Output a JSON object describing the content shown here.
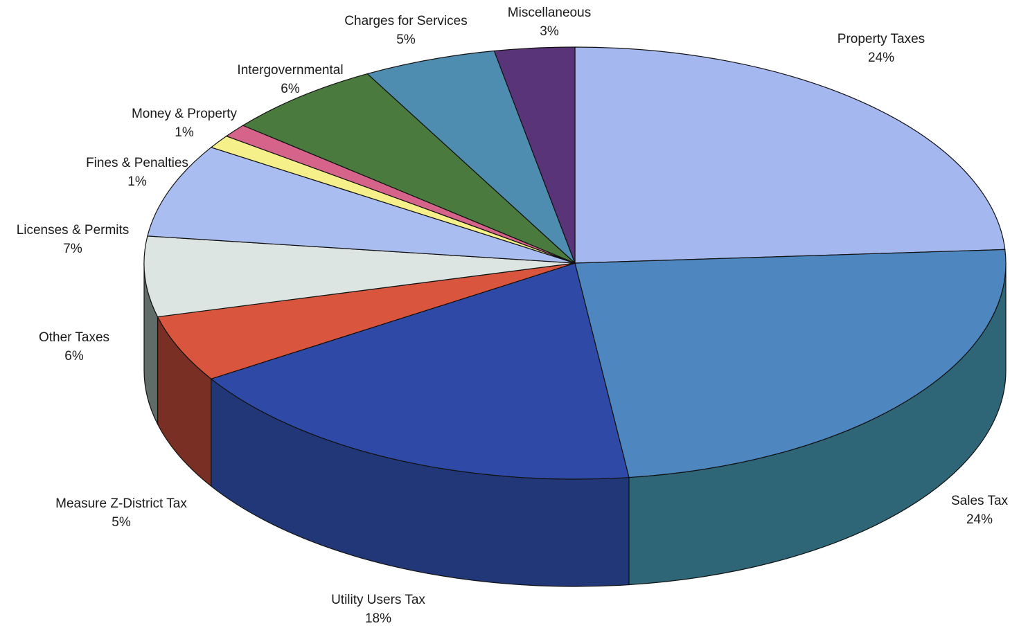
{
  "chart_data": {
    "type": "pie",
    "style": "3d",
    "start_angle_deg": 90,
    "direction": "clockwise",
    "slices": [
      {
        "label": "Property Taxes",
        "pct_label": "24%",
        "value": 24,
        "color": "#a4b8ef",
        "side_color": "#7f93c8"
      },
      {
        "label": "Sales Tax",
        "pct_label": "24%",
        "value": 24,
        "color": "#4e86bf",
        "side_color": "#2e6677"
      },
      {
        "label": "Utility Users Tax",
        "pct_label": "18%",
        "value": 18,
        "color": "#2f4aa6",
        "side_color": "#223778"
      },
      {
        "label": "Measure Z-District Tax",
        "pct_label": "5%",
        "value": 5,
        "color": "#d9553d",
        "side_color": "#7a2f24"
      },
      {
        "label": "Other Taxes",
        "pct_label": "6%",
        "value": 6,
        "color": "#dde5e3",
        "side_color": "#5f6c67"
      },
      {
        "label": "Licenses & Permits",
        "pct_label": "7%",
        "value": 7,
        "color": "#a9bdf0",
        "side_color": "#8396c8"
      },
      {
        "label": "Fines & Penalties",
        "pct_label": "1%",
        "value": 1,
        "color": "#f5f08a",
        "side_color": "#b8b360"
      },
      {
        "label": "Money & Property",
        "pct_label": "1%",
        "value": 1,
        "color": "#d5638a",
        "side_color": "#8c3f5a"
      },
      {
        "label": "Intergovernmental",
        "pct_label": "6%",
        "value": 6,
        "color": "#4a7a3e",
        "side_color": "#2f5127"
      },
      {
        "label": "Charges for Services",
        "pct_label": "5%",
        "value": 5,
        "color": "#4e8db0",
        "side_color": "#2f5f78"
      },
      {
        "label": "Miscellaneous",
        "pct_label": "3%",
        "value": 3,
        "color": "#5a3478",
        "side_color": "#3a2050"
      }
    ]
  }
}
